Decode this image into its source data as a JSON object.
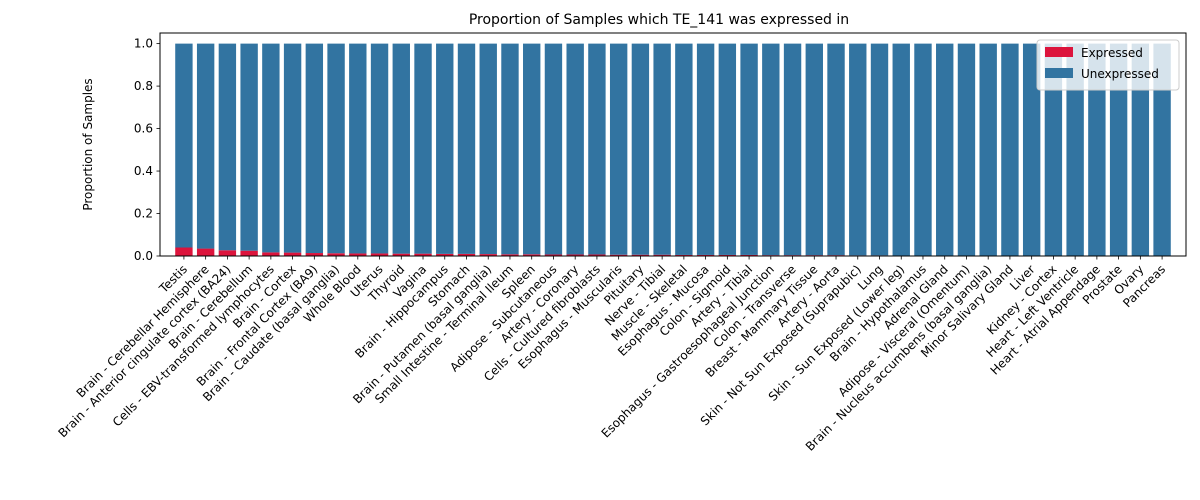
{
  "chart_data": {
    "type": "bar",
    "stacked": true,
    "title": "Proportion of Samples which TE_141 was expressed in",
    "xlabel": "",
    "ylabel": "Proportion of Samples",
    "ylim": [
      0,
      1.05
    ],
    "yticks": [
      0.0,
      0.2,
      0.4,
      0.6,
      0.8,
      1.0
    ],
    "ytick_labels": [
      "0.0",
      "0.2",
      "0.4",
      "0.6",
      "0.8",
      "1.0"
    ],
    "grid": false,
    "legend_position": "top-right",
    "categories": [
      "Testis",
      "Brain - Cerebellar Hemisphere",
      "Brain - Anterior cingulate cortex (BA24)",
      "Brain - Cerebellum",
      "Cells - EBV-transformed lymphocytes",
      "Brain - Cortex",
      "Brain - Frontal Cortex (BA9)",
      "Brain - Caudate (basal ganglia)",
      "Whole Blood",
      "Uterus",
      "Thyroid",
      "Vagina",
      "Brain - Hippocampus",
      "Stomach",
      "Brain - Putamen (basal ganglia)",
      "Small Intestine - Terminal Ileum",
      "Spleen",
      "Adipose - Subcutaneous",
      "Artery - Coronary",
      "Cells - Cultured fibroblasts",
      "Esophagus - Muscularis",
      "Pituitary",
      "Nerve - Tibial",
      "Muscle - Skeletal",
      "Esophagus - Mucosa",
      "Colon - Sigmoid",
      "Artery - Tibial",
      "Esophagus - Gastroesophageal Junction",
      "Colon - Transverse",
      "Breast - Mammary Tissue",
      "Artery - Aorta",
      "Skin - Not Sun Exposed (Suprapubic)",
      "Lung",
      "Skin - Sun Exposed (Lower leg)",
      "Brain - Hypothalamus",
      "Adrenal Gland",
      "Adipose - Visceral (Omentum)",
      "Brain - Nucleus accumbens (basal ganglia)",
      "Minor Salivary Gland",
      "Liver",
      "Kidney - Cortex",
      "Heart - Left Ventricle",
      "Heart - Atrial Appendage",
      "Prostate",
      "Ovary",
      "Pancreas"
    ],
    "series": [
      {
        "name": "Expressed",
        "color": "#dc143c",
        "values": [
          0.04,
          0.035,
          0.027,
          0.025,
          0.017,
          0.016,
          0.014,
          0.013,
          0.012,
          0.012,
          0.011,
          0.011,
          0.01,
          0.01,
          0.009,
          0.008,
          0.008,
          0.007,
          0.007,
          0.007,
          0.006,
          0.006,
          0.006,
          0.005,
          0.005,
          0.005,
          0.005,
          0.004,
          0.004,
          0.004,
          0.004,
          0.003,
          0.003,
          0.002,
          0.002,
          0.001,
          0.001,
          0.001,
          0.0,
          0.0,
          0.0,
          0.0,
          0.0,
          0.0,
          0.0,
          0.0
        ]
      },
      {
        "name": "Unexpressed",
        "color": "#3274a1",
        "values": [
          0.96,
          0.965,
          0.973,
          0.975,
          0.983,
          0.984,
          0.986,
          0.987,
          0.988,
          0.988,
          0.989,
          0.989,
          0.99,
          0.99,
          0.991,
          0.992,
          0.992,
          0.993,
          0.993,
          0.993,
          0.994,
          0.994,
          0.994,
          0.995,
          0.995,
          0.995,
          0.995,
          0.996,
          0.996,
          0.996,
          0.996,
          0.997,
          0.997,
          0.998,
          0.998,
          0.999,
          0.999,
          0.999,
          1.0,
          1.0,
          1.0,
          1.0,
          1.0,
          1.0,
          1.0,
          1.0
        ]
      }
    ]
  }
}
